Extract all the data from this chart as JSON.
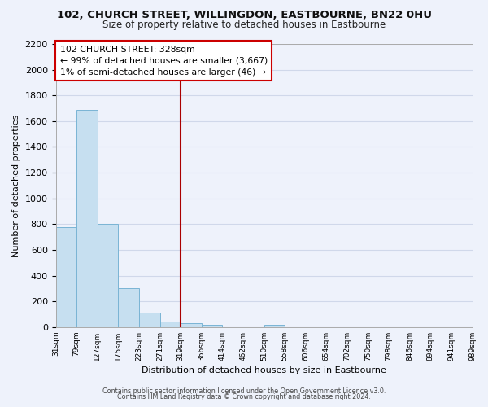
{
  "title": "102, CHURCH STREET, WILLINGDON, EASTBOURNE, BN22 0HU",
  "subtitle": "Size of property relative to detached houses in Eastbourne",
  "xlabel": "Distribution of detached houses by size in Eastbourne",
  "ylabel": "Number of detached properties",
  "footer_lines": [
    "Contains HM Land Registry data © Crown copyright and database right 2024.",
    "Contains public sector information licensed under the Open Government Licence v3.0."
  ],
  "bin_labels": [
    "31sqm",
    "79sqm",
    "127sqm",
    "175sqm",
    "223sqm",
    "271sqm",
    "319sqm",
    "366sqm",
    "414sqm",
    "462sqm",
    "510sqm",
    "558sqm",
    "606sqm",
    "654sqm",
    "702sqm",
    "750sqm",
    "798sqm",
    "846sqm",
    "894sqm",
    "941sqm",
    "989sqm"
  ],
  "bar_values": [
    780,
    1690,
    800,
    300,
    115,
    40,
    30,
    20,
    0,
    0,
    15,
    0,
    0,
    0,
    0,
    0,
    0,
    0,
    0,
    0
  ],
  "bar_color": "#c6dff0",
  "bar_edge_color": "#7ab4d4",
  "ylim": [
    0,
    2200
  ],
  "yticks": [
    0,
    200,
    400,
    600,
    800,
    1000,
    1200,
    1400,
    1600,
    1800,
    2000,
    2200
  ],
  "property_line_x": 6,
  "property_line_color": "#aa0000",
  "annotation_title": "102 CHURCH STREET: 328sqm",
  "annotation_line1": "← 99% of detached houses are smaller (3,667)",
  "annotation_line2": "1% of semi-detached houses are larger (46) →",
  "annotation_box_color": "#ffffff",
  "annotation_box_edge_color": "#cc0000",
  "grid_color": "#d0d8ea",
  "background_color": "#eef2fb",
  "plot_bg_color": "#eef2fb"
}
